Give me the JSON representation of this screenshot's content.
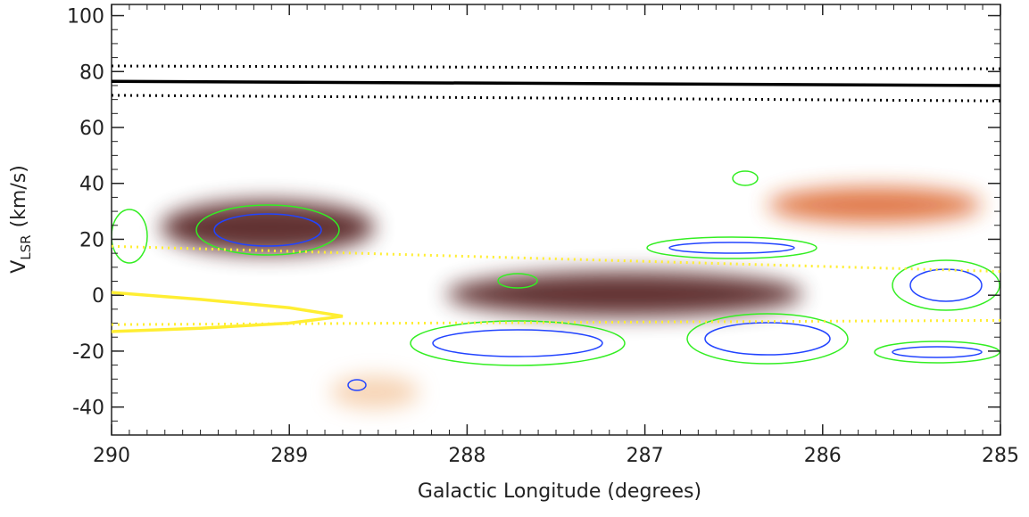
{
  "chart_data": {
    "type": "line",
    "xlabel": "Galactic Longitude (degrees)",
    "ylabel": "V",
    "ylabel_sub": "LSR",
    "ylabel_unit": "(km/s)",
    "xlim": [
      290,
      285
    ],
    "xticks": [
      290,
      289,
      288,
      287,
      286,
      285
    ],
    "ylim": [
      -50,
      104
    ],
    "yticks": [
      -40,
      -20,
      0,
      20,
      40,
      60,
      80,
      100
    ],
    "series": [
      {
        "x": [
          290,
          285
        ],
        "values": [
          76.5,
          75
        ],
        "color": "#000000",
        "linestyle": "solid"
      },
      {
        "x": [
          290,
          285
        ],
        "values": [
          82,
          81
        ],
        "color": "#000000",
        "linestyle": "dotted"
      },
      {
        "x": [
          290,
          285
        ],
        "values": [
          71.5,
          69.5
        ],
        "color": "#000000",
        "linestyle": "dotted"
      },
      {
        "x": [
          290,
          285
        ],
        "values": [
          17.5,
          8.5
        ],
        "color": "#ffee33",
        "linestyle": "dotted"
      },
      {
        "x": [
          290,
          285
        ],
        "values": [
          -10.5,
          -9
        ],
        "color": "#ffee33",
        "linestyle": "dotted"
      },
      {
        "x": [
          290,
          289.5,
          289.0,
          288.7,
          289.0,
          289.5,
          290
        ],
        "values": [
          1,
          -1.5,
          -4.5,
          -7.5,
          -10,
          -11.8,
          -13
        ],
        "color": "#ffee33",
        "linestyle": "solid"
      }
    ]
  }
}
